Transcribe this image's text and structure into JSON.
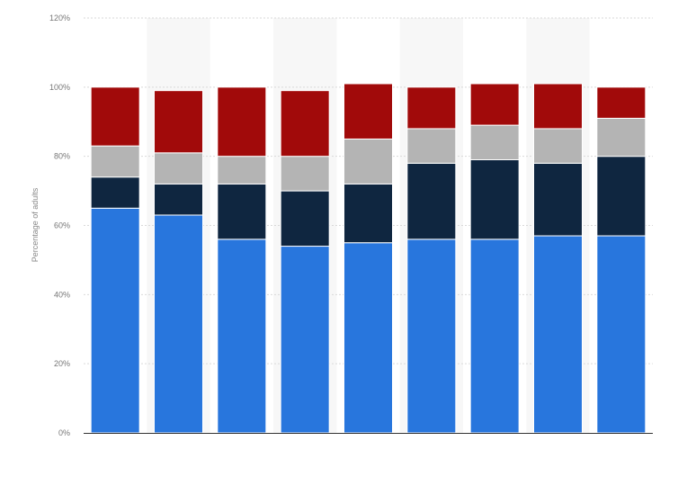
{
  "chart_data": {
    "type": "bar",
    "stacked": true,
    "title": "",
    "xlabel": "",
    "ylabel": "Percentage of adults",
    "ylim": [
      0,
      120
    ],
    "yticks": [
      0,
      20,
      40,
      60,
      80,
      100,
      120
    ],
    "ytick_suffix": "%",
    "grid": true,
    "legend": "none",
    "categories": [
      "",
      "",
      "",
      "",
      "",
      "",
      "",
      "",
      ""
    ],
    "series": [
      {
        "color": "#2876dd",
        "values": [
          65,
          63,
          56,
          54,
          55,
          56,
          56,
          57,
          57
        ]
      },
      {
        "color": "#0f2640",
        "values": [
          9,
          9,
          16,
          16,
          17,
          22,
          23,
          21,
          23
        ]
      },
      {
        "color": "#b4b4b4",
        "values": [
          9,
          9,
          8,
          10,
          13,
          10,
          10,
          10,
          11
        ]
      },
      {
        "color": "#a10a0a",
        "values": [
          17,
          18,
          20,
          19,
          16,
          12,
          12,
          13,
          9
        ]
      }
    ]
  }
}
